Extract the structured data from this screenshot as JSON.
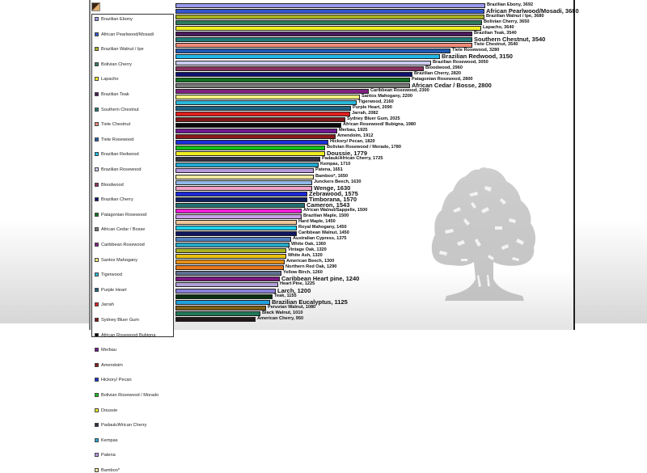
{
  "chart_data": {
    "type": "bar",
    "orientation": "horizontal",
    "title": "",
    "xlabel": "",
    "ylabel": "",
    "grid": false,
    "legend_position": "left",
    "categories": [
      "Brazilian Ebony",
      "African Pearlwood/Mosadi",
      "Brazilian Walnut / Ipe",
      "Bolivian Cherry",
      "Lapacho",
      "Brazilian Teak",
      "Southern Chestnut",
      "Tiete Chestnut",
      "Tiete Rosewood",
      "Brazilian Redwood",
      "Brazilian Rosewood",
      "Bloodwood",
      "Brazilian Cherry",
      "Patagonian Rosewood",
      "African Cedar / Bosse",
      "Caribbean Rosewood",
      "Santos Mahogany",
      "Tigerwood",
      "Purple Heart",
      "Jarrah",
      "Sydney Bluer Gum",
      "African Rosewood/ Bubigna",
      "Merbau",
      "Amendoim",
      "Hickory/ Pecan",
      "Bolivian Rosewood / Morado",
      "Doussie",
      "Padauk/African Cherry",
      "Kempas",
      "Patena",
      "Bamboo*",
      "Junckers Beech",
      "Wenge",
      "Zebrawood",
      "Timborana",
      "Cameron",
      "African Walnut/Sappelle",
      "Brazilian Maple",
      "Hard Maple",
      "Royal Mahogany",
      "Caribbean Walnut",
      "Australian Cypress",
      "White Oak",
      "Vintage Oak",
      "White Ash",
      "American Beech",
      "Northern Red Oak",
      "Yellow Birch",
      "Caribbean Heart pine",
      "Heart Pine",
      "Larch",
      "Teak",
      "Brazilian Eucalyptus",
      "Peruvian Walnut",
      "Black Walnut",
      "American Cherry"
    ],
    "values": [
      3692,
      3680,
      3680,
      3650,
      3640,
      3540,
      3540,
      3540,
      3280,
      3150,
      3050,
      2960,
      2820,
      2800,
      2800,
      2300,
      2200,
      2160,
      2090,
      2082,
      2025,
      1980,
      1925,
      1912,
      1820,
      1780,
      1779,
      1725,
      1710,
      1651,
      1650,
      1630,
      1630,
      1575,
      1570,
      1543,
      1500,
      1500,
      1450,
      1450,
      1450,
      1375,
      1360,
      1320,
      1320,
      1300,
      1290,
      1260,
      1240,
      1225,
      1200,
      1155,
      1125,
      1080,
      1010,
      950
    ],
    "bar_colors": [
      "#9999ee",
      "#3355cc",
      "#a8b020",
      "#2f7a5a",
      "#f0ee20",
      "#4a1a5a",
      "#1f7a7a",
      "#f08878",
      "#1f5ab0",
      "#20b8e8",
      "#ccccf0",
      "#8a3060",
      "#101070",
      "#107020",
      "#7a7a7a",
      "#802080",
      "#f0f080",
      "#28b8d8",
      "#206080",
      "#e02020",
      "#801818",
      "#0a0a0a",
      "#701890",
      "#8a1818",
      "#1a2ed8",
      "#18c018",
      "#f0ee20",
      "#303040",
      "#20a8d0",
      "#b898e0",
      "#f0e8a0",
      "#90b8e8",
      "#f0a0c8",
      "#1a2ad8",
      "#102060",
      "#207070",
      "#f020d8",
      "#c8a0e8",
      "#f0c898",
      "#20d0e8",
      "#101860",
      "#5080c0",
      "#28a8c8",
      "#a8b020",
      "#e8c010",
      "#e89018",
      "#e87818",
      "#607090",
      "#7a1880",
      "#b0a0d8",
      "#8880d8",
      "#0a3010",
      "#20a0e0",
      "#806018",
      "#207858",
      "#201818"
    ],
    "value_range": [
      0,
      3692
    ],
    "labels_large": [
      "African Pearlwood/Mosadi",
      "Southern Chestnut",
      "Brazilian Redwood",
      "African Cedar / Bosse",
      "Doussie",
      "Palena",
      "Wenge",
      "Zebrawood",
      "Timborana",
      "Cameron",
      "Caribbean Heart pine",
      "Larch",
      "Brazilian Eucalyptus"
    ]
  },
  "legend": {
    "items": [
      "Brazilian Ebony",
      "African Pearlwood/Mosadi",
      "Brazilian Walnut / Ipe",
      "Bolivian Cherry",
      "Lapacho",
      "Brazilian Teak",
      "Southern Chestnut",
      "Tiete Chestnut",
      "Tiete Rosewood",
      "Brazilian Redwood",
      "Brazilian Rosewood",
      "Bloodwood",
      "Brazilian Cherry",
      "Patagonian Rosewood",
      "African Cedar / Bosse",
      "Caribbean Rosewood",
      "Santos Mahogany",
      "Tigerwood",
      "Purple Heart",
      "Jarrah",
      "Sydney Bluer Gum",
      "African Rosewood Bubigna",
      "Merbau",
      "Amendoim",
      "Hickory/ Pecan",
      "Bolivian Rosewood / Morado",
      "Doussie",
      "Padauk/African Cherry",
      "Kempas",
      "Patena",
      "Bamboo*"
    ],
    "swatch_colors": [
      "#9999ee",
      "#3355cc",
      "#a8b020",
      "#2f7a5a",
      "#f0ee20",
      "#4a1a5a",
      "#1f7a7a",
      "#f08878",
      "#1f5ab0",
      "#20b8e8",
      "#ccccf0",
      "#8a3060",
      "#101070",
      "#107020",
      "#7a7a7a",
      "#802080",
      "#f0f080",
      "#28b8d8",
      "#206080",
      "#e02020",
      "#801818",
      "#0a0a0a",
      "#701890",
      "#8a1818",
      "#1a2ed8",
      "#18c018",
      "#f0ee20",
      "#303040",
      "#20a8d0",
      "#b898e0",
      "#f0e8a0"
    ]
  },
  "decoration": {
    "watermark": "tree-logo"
  }
}
